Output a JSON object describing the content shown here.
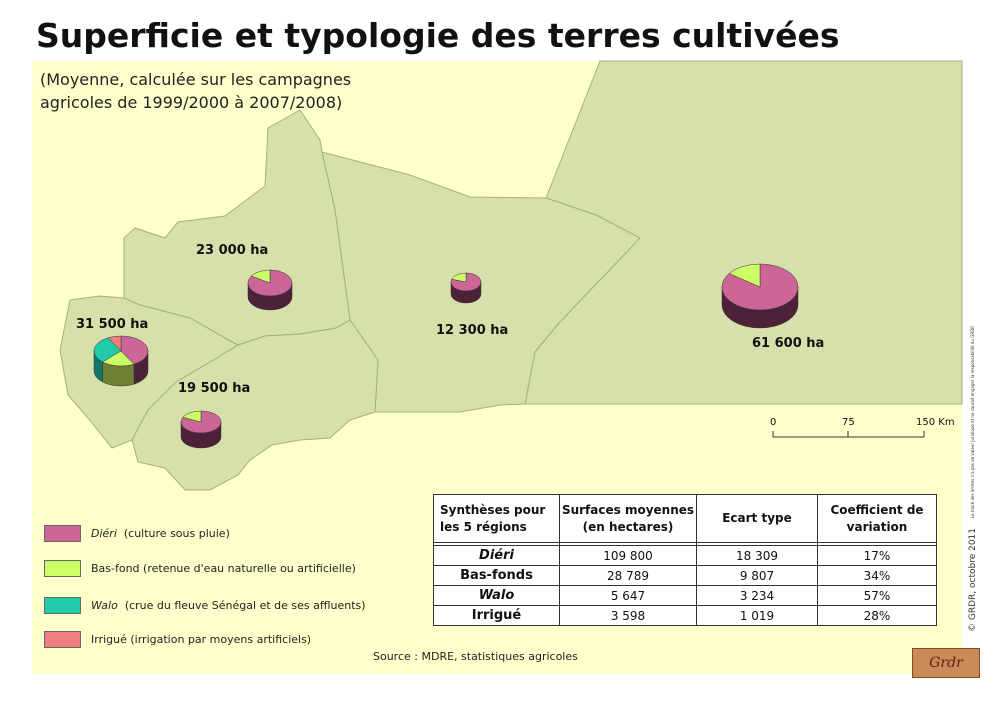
{
  "title": "Superficie et typologie des terres cultivées",
  "subtitle": {
    "line1": "(Moyenne, calculée sur les campagnes",
    "line2": "agricoles de 1999/2000 à 2007/2008)"
  },
  "colors": {
    "background": "#ffffcc",
    "land": "#d6e0ab",
    "border": "#a3b27a",
    "dieri_top": "#cc6699",
    "dieri_side": "#4d2238",
    "basfond_top": "#ccff66",
    "basfond_side": "#6f8035",
    "walo_top": "#22ccaa",
    "walo_side": "#117766",
    "irrigue": "#f08080"
  },
  "regions": [
    {
      "name": "region-nw",
      "surface": "23 000 ha",
      "shares": {
        "dieri": 0.84,
        "basfond": 0.16,
        "walo": 0,
        "irrigue": 0
      }
    },
    {
      "name": "region-west",
      "surface": "31 500 ha",
      "shares": {
        "dieri": 0.42,
        "basfond": 0.2,
        "walo": 0.3,
        "irrigue": 0.08
      }
    },
    {
      "name": "region-sw",
      "surface": "19 500 ha",
      "shares": {
        "dieri": 0.82,
        "basfond": 0.18,
        "walo": 0,
        "irrigue": 0
      }
    },
    {
      "name": "region-center",
      "surface": "12 300 ha",
      "shares": {
        "dieri": 0.8,
        "basfond": 0.2,
        "walo": 0,
        "irrigue": 0
      }
    },
    {
      "name": "region-east",
      "surface": "61 600 ha",
      "shares": {
        "dieri": 0.85,
        "basfond": 0.15,
        "walo": 0,
        "irrigue": 0
      }
    }
  ],
  "scale": {
    "t0": "0",
    "t1": "75",
    "t2": "150 Km"
  },
  "legend": [
    {
      "key": "dieri",
      "term": "Diéri",
      "desc": "(culture sous pluie)",
      "italic": true
    },
    {
      "key": "basfond",
      "term": "",
      "desc": "Bas-fond (retenue d'eau naturelle ou artificielle)",
      "italic": false
    },
    {
      "key": "walo",
      "term": "Walo",
      "desc": "(crue du fleuve Sénégal et de ses affluents)",
      "italic": true
    },
    {
      "key": "irrigue",
      "term": "",
      "desc": "Irrigué (irrigation par moyens artificiels)",
      "italic": false
    }
  ],
  "table": {
    "headers": [
      "Synthèses pour\nles 5 régions",
      "Surfaces moyennes\n(en hectares)",
      "Ecart type",
      "Coefficient de\nvariation"
    ],
    "rows": [
      [
        "Diéri",
        "109 800",
        "18 309",
        "17%"
      ],
      [
        "Bas-fonds",
        "28 789",
        "9 807",
        "34%"
      ],
      [
        "Walo",
        "5 647",
        "3 234",
        "57%"
      ],
      [
        "Irrigué",
        "3 598",
        "1 019",
        "28%"
      ]
    ]
  },
  "source": "Source : MDRE, statistiques agricoles",
  "credit": "© GRDR, octobre 2011",
  "disclaimer": "Le tracé des limites n'a pas de valeur juridique et ne saurait engager la responsabilité du GRDR",
  "logo_text": "Grdr"
}
